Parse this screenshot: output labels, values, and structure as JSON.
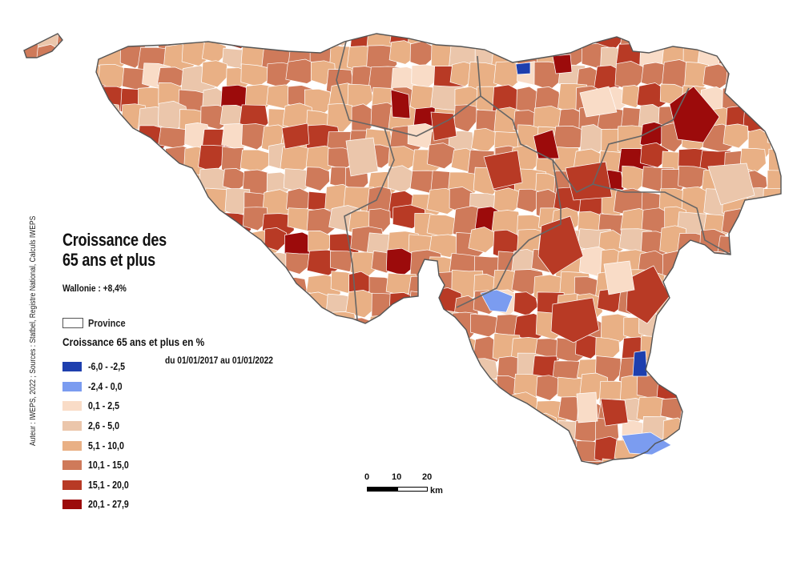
{
  "map": {
    "title_line1": "Croissance des",
    "title_line2": "65 ans et plus",
    "region_total": "Wallonie : +8,4%",
    "province_label": "Province",
    "legend_title": "Croissance 65 ans et plus en %",
    "legend_period": "du 01/01/2017 au 01/01/2022",
    "legend": [
      {
        "label": "-6,0 - -2,5",
        "color": "#1e3fae"
      },
      {
        "label": "-2,4 - 0,0",
        "color": "#7b9cf0"
      },
      {
        "label": "0,1 - 2,5",
        "color": "#f9dcc7"
      },
      {
        "label": "2,6 - 5,0",
        "color": "#ebc6ab"
      },
      {
        "label": "5,1 - 10,0",
        "color": "#e9b085"
      },
      {
        "label": "10,1 - 15,0",
        "color": "#cf7a5a"
      },
      {
        "label": "15,1 - 20,0",
        "color": "#b83a25"
      },
      {
        "label": "20,1 - 27,9",
        "color": "#9c0b0b"
      }
    ],
    "credit": "Auteur : IWEPS, 2022 ; Sources : Statbel, Registre National, Calculs IWEPS",
    "scale": {
      "ticks": [
        "0",
        "10",
        "20"
      ],
      "unit": "km"
    },
    "province_border_color": "#666666"
  }
}
